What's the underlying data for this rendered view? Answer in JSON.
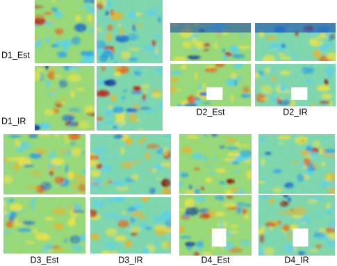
{
  "groups": [
    {
      "est_label": "D1_Est",
      "ir_label": "D1_IR"
    },
    {
      "est_label": "D2_Est",
      "ir_label": "D2_IR"
    },
    {
      "est_label": "D3_Est",
      "ir_label": "D3_IR"
    },
    {
      "est_label": "D4_Est",
      "ir_label": "D4_IR"
    }
  ]
}
